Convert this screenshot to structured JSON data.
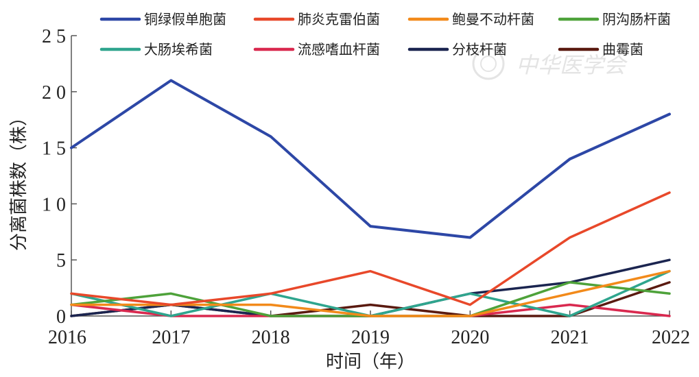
{
  "chart_data": {
    "type": "line",
    "xlabel": "时间（年）",
    "ylabel": "分离菌株数（株）",
    "categories": [
      "2016",
      "2017",
      "2018",
      "2019",
      "2020",
      "2021",
      "2022"
    ],
    "ylim": [
      0,
      25
    ],
    "yticks": [
      0,
      5,
      10,
      15,
      20,
      25
    ],
    "ytick_labels": [
      "0",
      "5",
      "1 0",
      "1 5",
      "2 0",
      "2 5"
    ],
    "grid": false,
    "legend_position": "top",
    "series": [
      {
        "name": "铜绿假单胞菌",
        "color": "#2d47a6",
        "values": [
          15,
          21,
          16,
          8,
          7,
          14,
          18
        ]
      },
      {
        "name": "肺炎克雷伯菌",
        "color": "#e8482a",
        "values": [
          2,
          1,
          2,
          4,
          1,
          7,
          11
        ]
      },
      {
        "name": "鲍曼不动杆菌",
        "color": "#f28a1a",
        "values": [
          1,
          1,
          1,
          0,
          0,
          2,
          4
        ]
      },
      {
        "name": "阴沟肠杆菌",
        "color": "#4ea23a",
        "values": [
          1,
          2,
          0,
          0,
          0,
          3,
          2
        ]
      },
      {
        "name": "大肠埃希菌",
        "color": "#2fa58e",
        "values": [
          2,
          0,
          2,
          0,
          2,
          0,
          4
        ]
      },
      {
        "name": "流感嗜血杆菌",
        "color": "#d9294f",
        "values": [
          1,
          0,
          0,
          0,
          0,
          1,
          0
        ]
      },
      {
        "name": "分枝杆菌",
        "color": "#1b2550",
        "values": [
          0,
          1,
          0,
          0,
          2,
          3,
          5
        ]
      },
      {
        "name": "曲霉菌",
        "color": "#5a1a10",
        "values": [
          0,
          1,
          0,
          1,
          0,
          0,
          3
        ]
      }
    ]
  },
  "watermark": {
    "text": "中华医学会"
  }
}
